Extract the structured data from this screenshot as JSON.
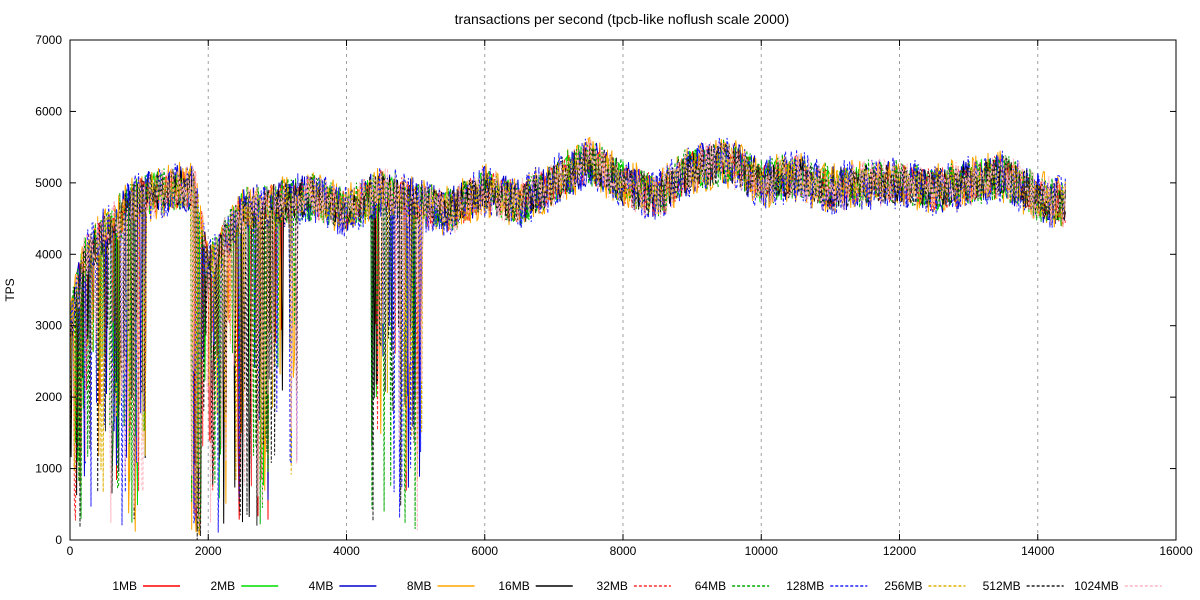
{
  "chart_data": {
    "type": "line",
    "title": "transactions per second (tpcb-like noflush scale 2000)",
    "xlabel": "",
    "ylabel": "TPS",
    "xlim": [
      0,
      16000
    ],
    "ylim": [
      0,
      7000
    ],
    "x_ticks": [
      0,
      2000,
      4000,
      6000,
      8000,
      10000,
      12000,
      14000,
      16000
    ],
    "y_ticks": [
      0,
      1000,
      2000,
      3000,
      4000,
      5000,
      6000,
      7000
    ],
    "grid": "vertical-dashed",
    "legend_position": "bottom",
    "x_end": 14400,
    "series": [
      {
        "name": "1MB",
        "color": "#ff0000",
        "style": "solid"
      },
      {
        "name": "2MB",
        "color": "#00dd00",
        "style": "solid"
      },
      {
        "name": "4MB",
        "color": "#0000cc",
        "style": "solid"
      },
      {
        "name": "8MB",
        "color": "#ffa500",
        "style": "solid"
      },
      {
        "name": "16MB",
        "color": "#000000",
        "style": "solid"
      },
      {
        "name": "32MB",
        "color": "#ff3030",
        "style": "dashed"
      },
      {
        "name": "64MB",
        "color": "#00aa00",
        "style": "dashed"
      },
      {
        "name": "128MB",
        "color": "#2020ff",
        "style": "dashed"
      },
      {
        "name": "256MB",
        "color": "#e0b000",
        "style": "dashed"
      },
      {
        "name": "512MB",
        "color": "#202020",
        "style": "dashed"
      },
      {
        "name": "1024MB",
        "color": "#ffb6c1",
        "style": "dashed"
      }
    ],
    "profile": {
      "x": [
        0,
        200,
        500,
        800,
        1000,
        1500,
        1800,
        2000,
        2500,
        3000,
        3500,
        4000,
        4500,
        5000,
        5500,
        6000,
        6500,
        7000,
        7500,
        8000,
        8500,
        9000,
        9500,
        10000,
        10500,
        11000,
        11500,
        12000,
        12500,
        13000,
        13500,
        14000,
        14400
      ],
      "y": [
        3000,
        3900,
        4300,
        4600,
        4800,
        4900,
        4950,
        3800,
        4600,
        4700,
        4800,
        4600,
        4900,
        4700,
        4600,
        4900,
        4700,
        5000,
        5300,
        5000,
        4800,
        5200,
        5300,
        5000,
        5100,
        4900,
        5000,
        5000,
        4900,
        5000,
        5100,
        4800,
        4700
      ]
    }
  }
}
